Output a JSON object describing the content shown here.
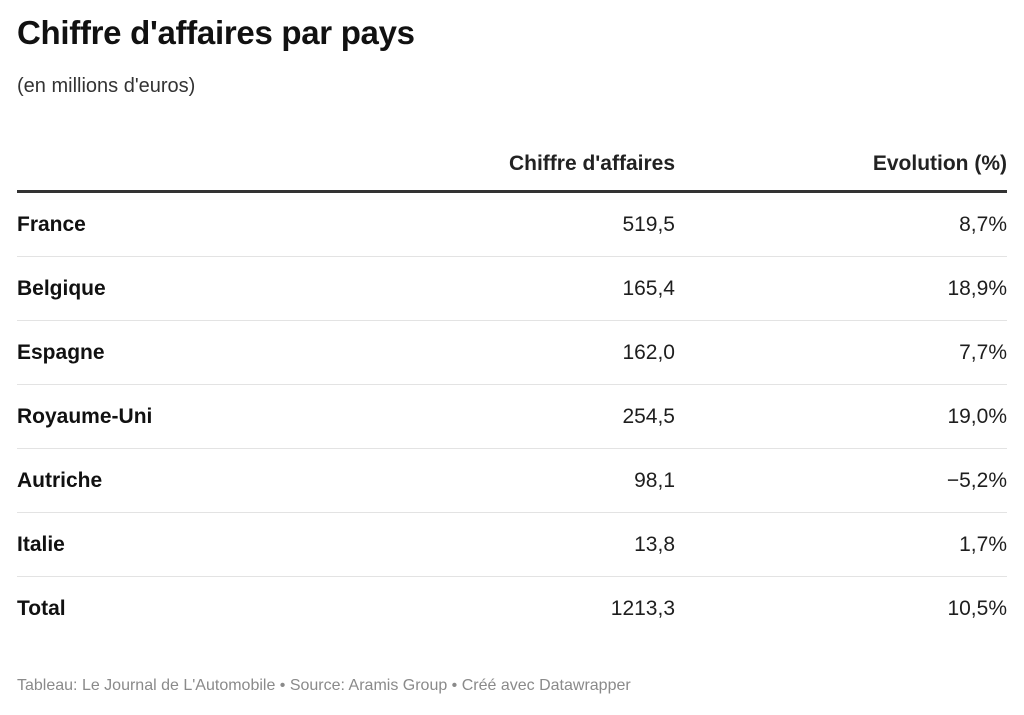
{
  "header": {
    "title": "Chiffre d'affaires par pays",
    "subtitle": "(en millions d'euros)"
  },
  "footer": {
    "credit": "Tableau: Le Journal de L'Automobile • Source: Aramis Group • Créé avec Datawrapper"
  },
  "chart_data": {
    "type": "table",
    "title": "Chiffre d'affaires par pays",
    "subtitle": "(en millions d'euros)",
    "columns": [
      "",
      "Chiffre d'affaires",
      "Evolution (%)"
    ],
    "rows": [
      {
        "country": "France",
        "ca": "519,5",
        "evo": "8,7%"
      },
      {
        "country": "Belgique",
        "ca": "165,4",
        "evo": "18,9%"
      },
      {
        "country": "Espagne",
        "ca": "162,0",
        "evo": "7,7%"
      },
      {
        "country": "Royaume-Uni",
        "ca": "254,5",
        "evo": "19,0%"
      },
      {
        "country": "Autriche",
        "ca": "98,1",
        "evo": "−5,2%"
      },
      {
        "country": "Italie",
        "ca": "13,8",
        "evo": "1,7%"
      },
      {
        "country": "Total",
        "ca": "1213,3",
        "evo": "10,5%"
      }
    ]
  }
}
